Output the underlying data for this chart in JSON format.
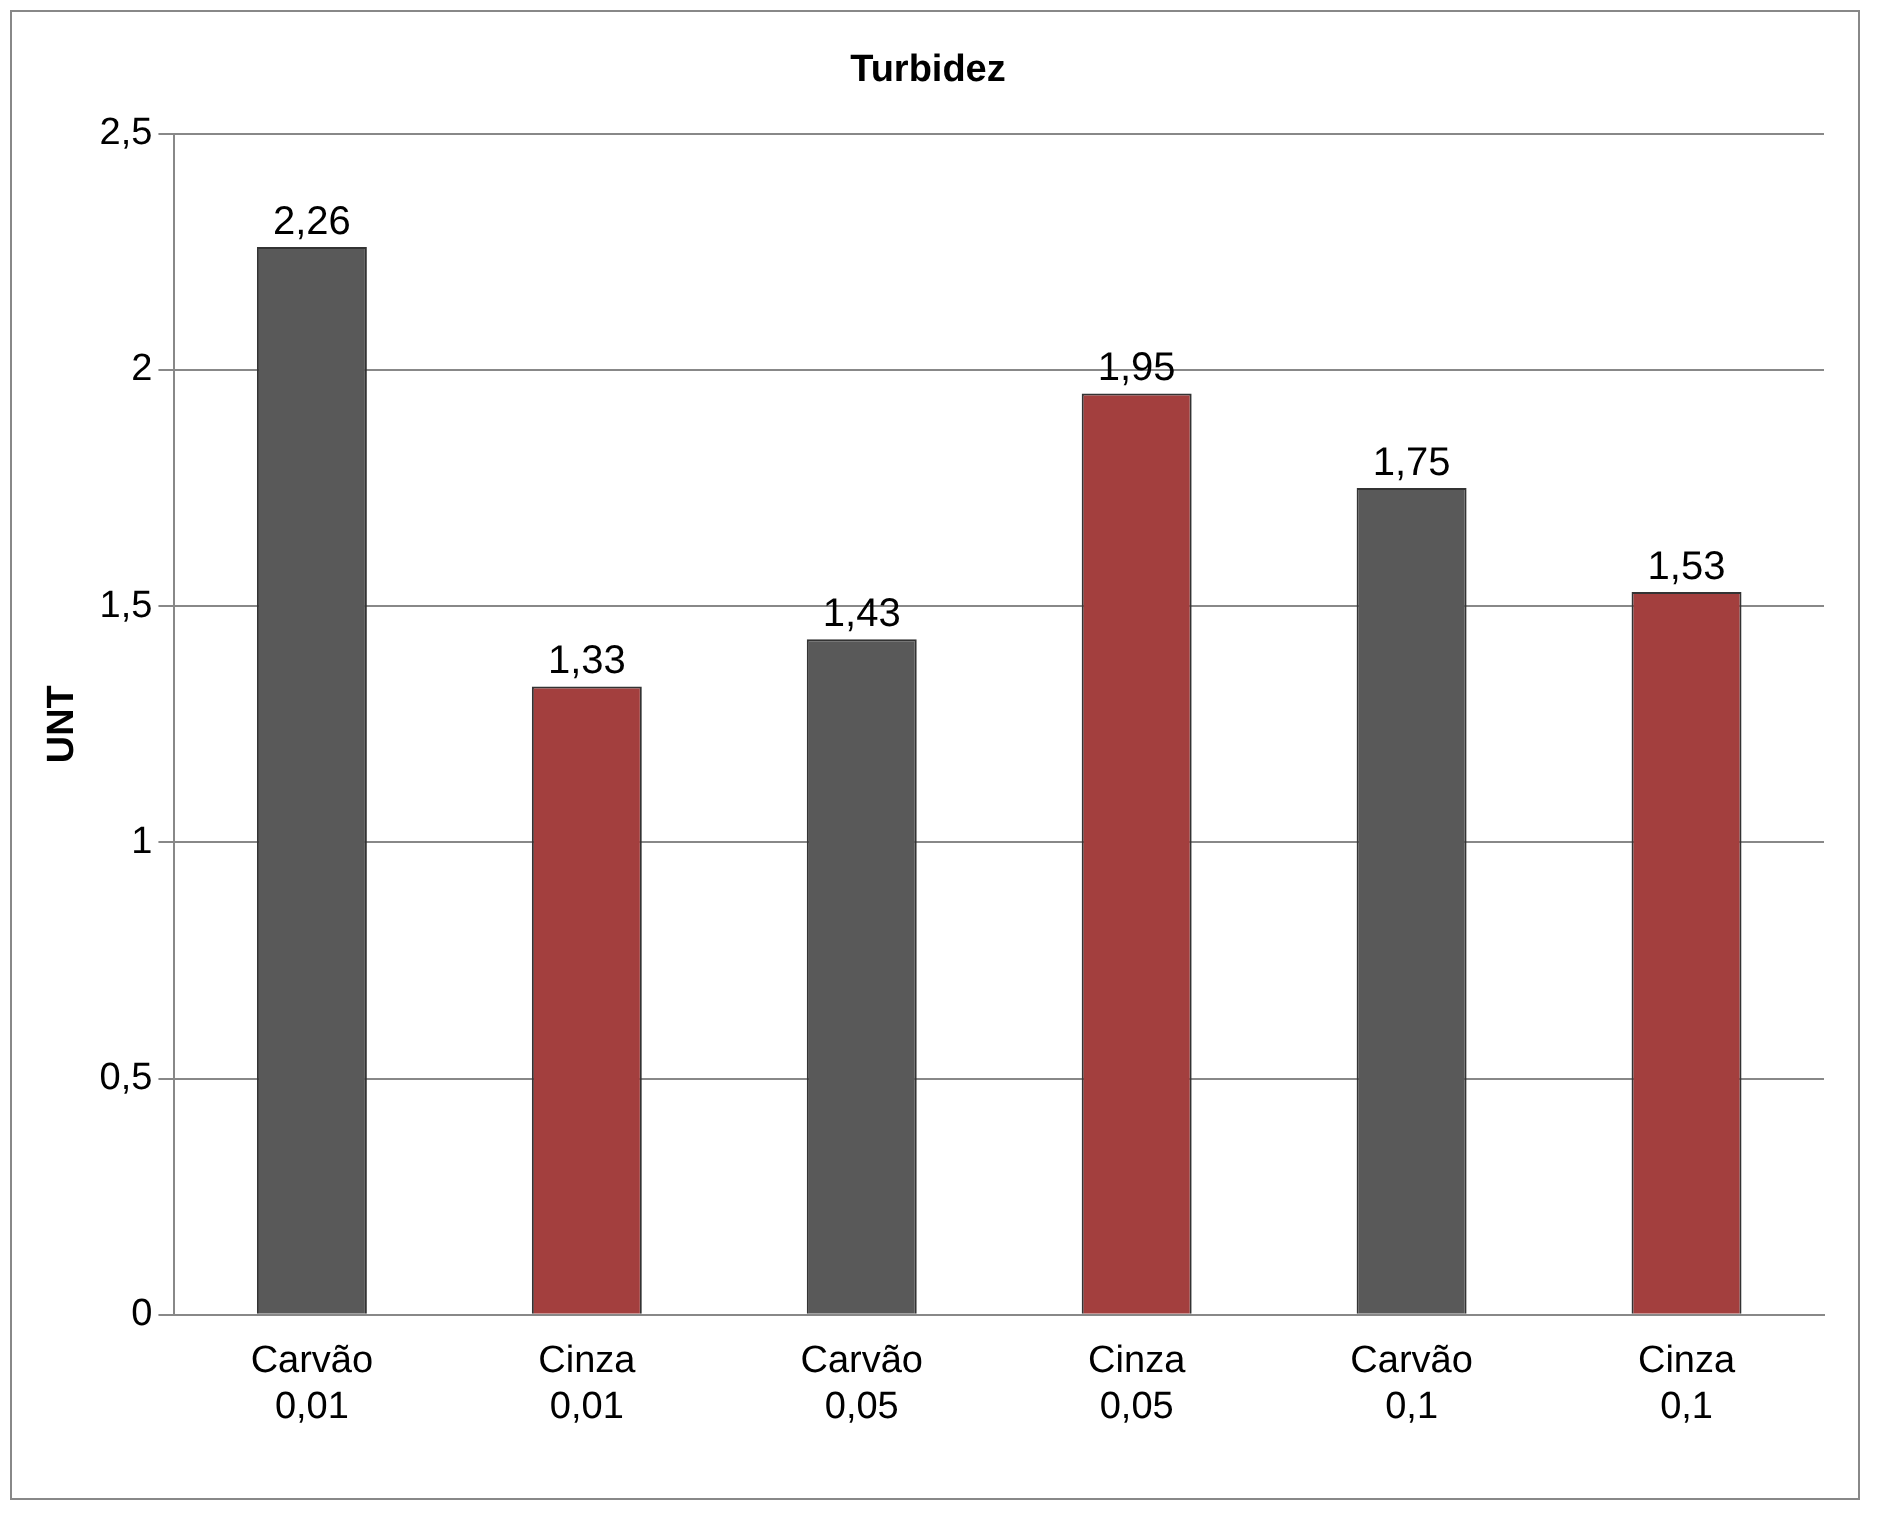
{
  "chart_data": {
    "type": "bar",
    "title": "Turbidez",
    "ylabel": "UNT",
    "categories": [
      "Carvão 0,01",
      "Cinza 0,01",
      "Carvão 0,05",
      "Cinza 0,05",
      "Carvão 0,1",
      "Cinza 0,1"
    ],
    "values": [
      2.26,
      1.33,
      1.43,
      1.95,
      1.75,
      1.53
    ],
    "colors": [
      "#595959",
      "#a33f3e",
      "#595959",
      "#a33f3e",
      "#595959",
      "#a33f3e"
    ],
    "value_labels": [
      "2,26",
      "1,33",
      "1,43",
      "1,95",
      "1,75",
      "1,53"
    ],
    "ylim": [
      0,
      2.5
    ],
    "yticks": [
      0,
      {
        "value": 0.5,
        "label": "0,5"
      },
      1,
      {
        "value": 1.5,
        "label": "1,5"
      },
      2,
      {
        "value": 2.5,
        "label": "2,5"
      }
    ],
    "grid": "y",
    "legend": false
  }
}
